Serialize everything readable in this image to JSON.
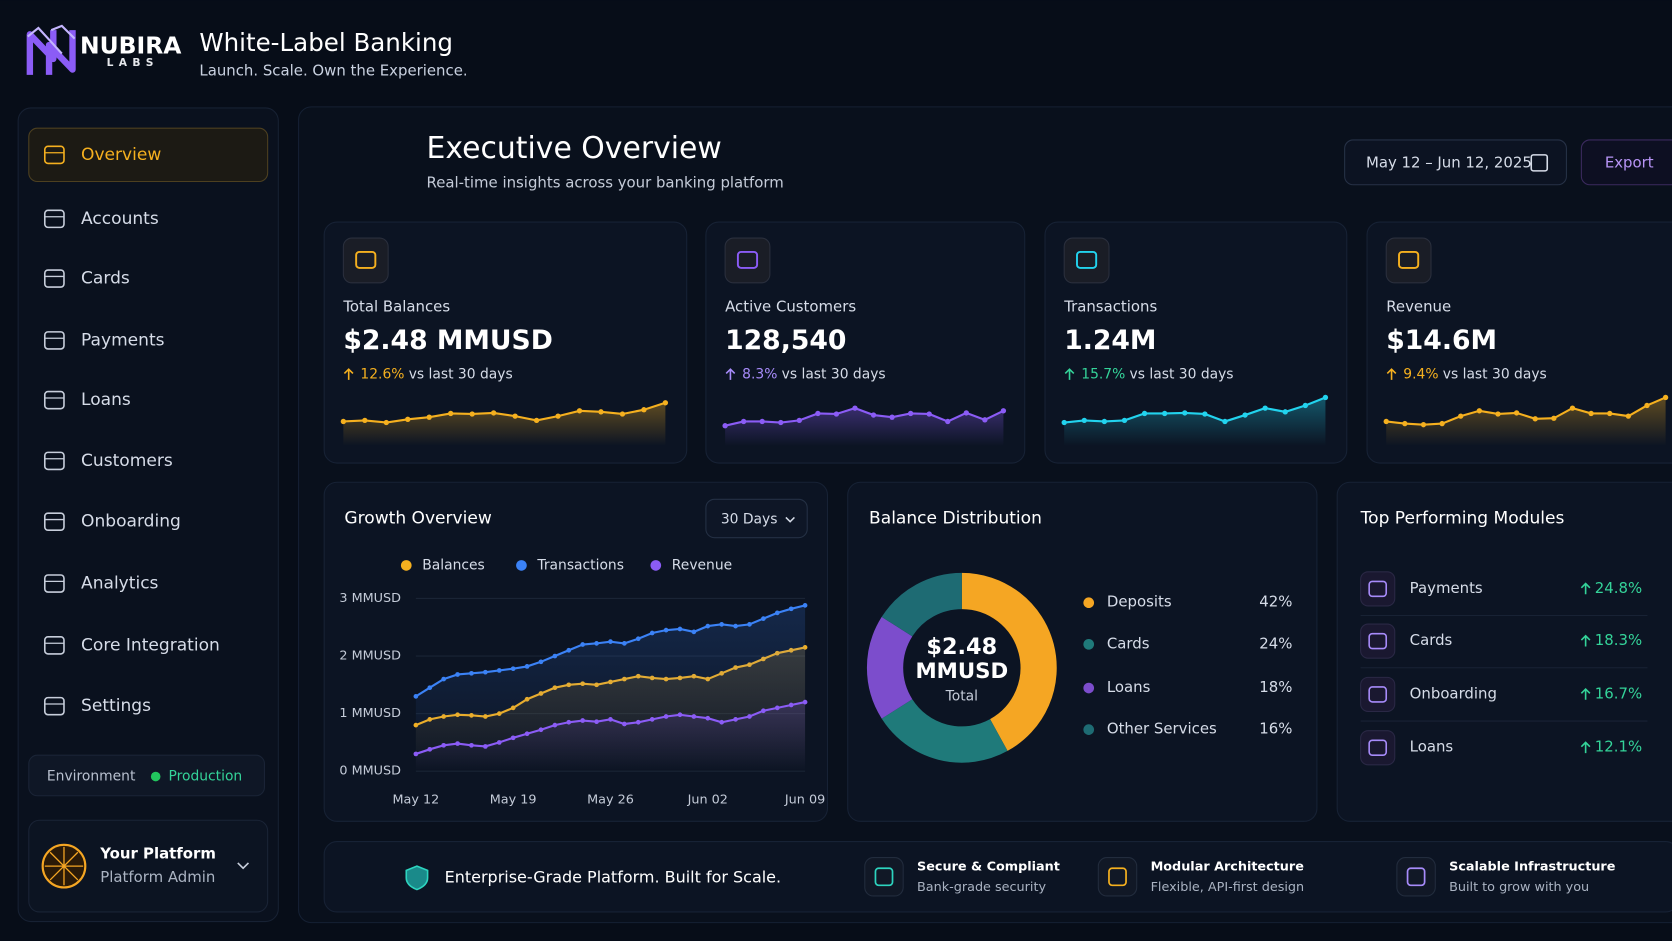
{
  "header": {
    "brand": "NUBIRA",
    "brand_sub": "LABS",
    "title": "White-Label Banking",
    "tagline": "Launch. Scale. Own the Experience."
  },
  "nav": {
    "items": [
      "Overview",
      "Accounts",
      "Cards",
      "Payments",
      "Loans",
      "Customers",
      "Onboarding",
      "Analytics",
      "Core Integration",
      "Settings"
    ],
    "active": 0,
    "environment_label": "Environment",
    "environment_value": "Production",
    "user_name": "Your Platform",
    "user_role": "Platform Admin"
  },
  "page": {
    "title": "Executive Overview",
    "subtitle": "Real-time insights across your banking platform",
    "date_range": "May 12 – Jun 12, 2025",
    "export": "Export"
  },
  "kpis": [
    {
      "label": "Total Balances",
      "value": "$2.48 MMUSD",
      "change": "12.6%",
      "compare": "vs last 30 days",
      "accent": "#f5b01f",
      "line": "#f5b01f",
      "ylim": [
        0,
        100
      ],
      "sparkline": [
        30,
        32,
        28,
        34,
        38,
        45,
        44,
        46,
        40,
        32,
        40,
        50,
        48,
        44,
        52,
        65
      ]
    },
    {
      "label": "Active Customers",
      "value": "128,540",
      "change": "8.3%",
      "compare": "vs last 30 days",
      "accent": "#a78bfa",
      "line": "#8b5cf6",
      "ylim": [
        0,
        100
      ],
      "sparkline": [
        22,
        30,
        30,
        28,
        32,
        45,
        44,
        55,
        42,
        38,
        45,
        44,
        30,
        46,
        33,
        50
      ]
    },
    {
      "label": "Transactions",
      "value": "1.24M",
      "change": "15.7%",
      "compare": "vs last 30 days",
      "accent": "#34d399",
      "line": "#22d3ee",
      "ylim": [
        0,
        100
      ],
      "sparkline": [
        28,
        32,
        30,
        32,
        45,
        45,
        46,
        44,
        30,
        42,
        55,
        48,
        60,
        75
      ]
    },
    {
      "label": "Revenue",
      "value": "$14.6M",
      "change": "9.4%",
      "compare": "vs last 30 days",
      "accent": "#f5b01f",
      "line": "#f5b01f",
      "ylim": [
        0,
        100
      ],
      "sparkline": [
        30,
        26,
        24,
        26,
        40,
        50,
        44,
        46,
        35,
        36,
        55,
        45,
        45,
        40,
        60,
        75
      ]
    }
  ],
  "chart_data": [
    {
      "type": "line",
      "title": "Growth Overview",
      "period": "30 Days",
      "categories": [
        "May 12",
        null,
        null,
        null,
        null,
        null,
        null,
        "May 19",
        null,
        null,
        null,
        null,
        null,
        null,
        "May 26",
        null,
        null,
        null,
        null,
        null,
        null,
        "Jun 02",
        null,
        null,
        null,
        null,
        null,
        null,
        "Jun 09"
      ],
      "series": [
        {
          "name": "Balances",
          "color": "#f5b01f",
          "values": [
            0.8,
            0.9,
            0.95,
            0.98,
            0.97,
            0.95,
            1.0,
            1.1,
            1.25,
            1.35,
            1.45,
            1.5,
            1.52,
            1.5,
            1.55,
            1.6,
            1.65,
            1.62,
            1.6,
            1.62,
            1.65,
            1.6,
            1.7,
            1.8,
            1.85,
            1.95,
            2.05,
            2.1,
            2.15
          ]
        },
        {
          "name": "Transactions",
          "color": "#3b82f6",
          "values": [
            1.3,
            1.45,
            1.6,
            1.68,
            1.7,
            1.72,
            1.75,
            1.78,
            1.82,
            1.9,
            2.0,
            2.1,
            2.2,
            2.22,
            2.25,
            2.22,
            2.3,
            2.4,
            2.45,
            2.47,
            2.42,
            2.52,
            2.55,
            2.52,
            2.55,
            2.65,
            2.75,
            2.82,
            2.88
          ]
        },
        {
          "name": "Revenue",
          "color": "#8b5cf6",
          "values": [
            0.3,
            0.38,
            0.45,
            0.48,
            0.45,
            0.43,
            0.5,
            0.58,
            0.65,
            0.72,
            0.8,
            0.85,
            0.88,
            0.86,
            0.9,
            0.82,
            0.85,
            0.9,
            0.95,
            0.98,
            0.95,
            0.92,
            0.85,
            0.9,
            0.95,
            1.05,
            1.1,
            1.15,
            1.2
          ]
        }
      ],
      "ylim": [
        0,
        3
      ],
      "yticks": [
        {
          "value": 0,
          "label": "0 MMUSD"
        },
        {
          "value": 1,
          "label": "1 MMUSD"
        },
        {
          "value": 2,
          "label": "2 MMUSD"
        },
        {
          "value": 3,
          "label": "3 MMUSD"
        }
      ],
      "grid": true
    },
    {
      "type": "pie",
      "title": "Balance Distribution",
      "center_value": "$2.48",
      "center_unit": "MMUSD",
      "center_label": "Total",
      "categories": [
        "Deposits",
        "Cards",
        "Loans",
        "Other Services"
      ],
      "values": [
        42,
        24,
        18,
        16
      ],
      "value_labels": [
        "42%",
        "24%",
        "18%",
        "16%"
      ],
      "colors": [
        "#f5a623",
        "#1f7a7a",
        "#7c4dcc",
        "#1e6b73"
      ]
    }
  ],
  "modules": {
    "title": "Top Performing Modules",
    "items": [
      {
        "name": "Payments",
        "change": "24.8%"
      },
      {
        "name": "Cards",
        "change": "18.3%"
      },
      {
        "name": "Onboarding",
        "change": "16.7%"
      },
      {
        "name": "Loans",
        "change": "12.1%"
      }
    ]
  },
  "footer": {
    "headline": "Enterprise-Grade Platform. Built for Scale.",
    "features": [
      {
        "title": "Secure & Compliant",
        "desc": "Bank-grade security"
      },
      {
        "title": "Modular Architecture",
        "desc": "Flexible, API-first design"
      },
      {
        "title": "Scalable Infrastructure",
        "desc": "Built to grow with you"
      }
    ]
  }
}
